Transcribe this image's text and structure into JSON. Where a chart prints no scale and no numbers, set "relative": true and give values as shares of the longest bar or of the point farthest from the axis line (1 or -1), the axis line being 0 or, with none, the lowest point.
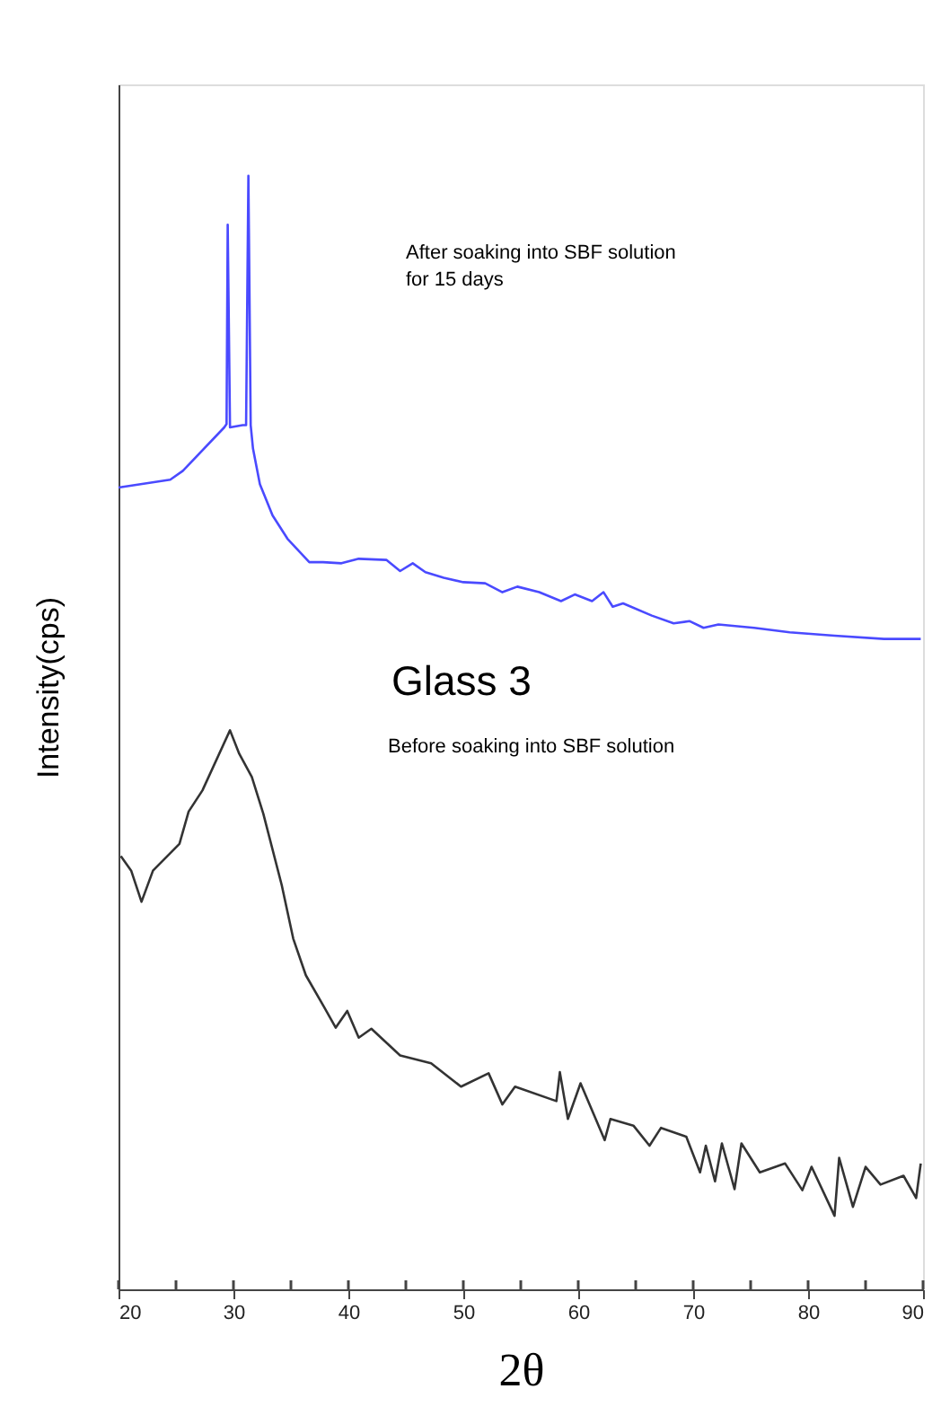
{
  "chart_data": {
    "type": "line",
    "relative": true,
    "xlabel": "2θ",
    "ylabel": "Intensity(cps)",
    "annotations": [
      "After soaking into SBF solution\nfor 15 days",
      "Glass 3",
      "Before soaking into SBF solution"
    ],
    "xlim": [
      20,
      90
    ],
    "xticks": [
      20,
      {
        "value": 25,
        "label": null
      },
      30,
      {
        "value": 35,
        "label": null
      },
      40,
      {
        "value": 45,
        "label": null
      },
      50,
      {
        "value": 55,
        "label": null
      },
      60,
      {
        "value": 65,
        "label": null
      },
      70,
      {
        "value": 75,
        "label": null
      },
      80,
      {
        "value": 85,
        "label": null
      },
      90
    ],
    "grid": false,
    "marker": "none",
    "line_style": "solid",
    "series": [
      {
        "color": "#4a4aff",
        "x": [
          20,
          24.5,
          25.6,
          29.2,
          29.4,
          29.5,
          29.7,
          30.8,
          31.1,
          31.3,
          31.5,
          31.7,
          32.3,
          33.4,
          34.7,
          36.6,
          37.8,
          39.4,
          40.9,
          43.3,
          44.5,
          45.6,
          46.7,
          48.3,
          50,
          51.9,
          53.4,
          54.7,
          56.6,
          58.5,
          59.7,
          61.2,
          62.2,
          63,
          63.9,
          66.4,
          68.3,
          69.7,
          70.9,
          72.2,
          75.3,
          78.4,
          82.3,
          86.6,
          89.8
        ],
        "values": [
          0.72,
          0.727,
          0.735,
          0.774,
          0.777,
          0.956,
          0.774,
          0.776,
          0.776,
          1.0,
          0.776,
          0.755,
          0.723,
          0.695,
          0.674,
          0.653,
          0.653,
          0.652,
          0.656,
          0.655,
          0.645,
          0.652,
          0.644,
          0.639,
          0.635,
          0.634,
          0.626,
          0.631,
          0.626,
          0.618,
          0.624,
          0.618,
          0.626,
          0.613,
          0.616,
          0.605,
          0.598,
          0.6,
          0.594,
          0.597,
          0.594,
          0.59,
          0.587,
          0.584,
          0.584
        ]
      },
      {
        "color": "#333333",
        "x": [
          20.2,
          21.1,
          22,
          23,
          25.3,
          26.1,
          27.3,
          29.7,
          30.5,
          31.6,
          32.6,
          34.2,
          35.2,
          36.3,
          37.8,
          38.9,
          39.9,
          40.9,
          42,
          44.5,
          47.2,
          49.8,
          52.2,
          53.4,
          54.5,
          58.1,
          58.4,
          59.1,
          60.2,
          62.3,
          62.8,
          64.8,
          66.2,
          67.2,
          69.4,
          70.6,
          71.1,
          71.9,
          72.5,
          73.6,
          74.2,
          75.8,
          78,
          79.5,
          80.3,
          82.3,
          82.7,
          83.9,
          85,
          86.3,
          88.3,
          89.4,
          89.8
        ],
        "values": [
          0.389,
          0.376,
          0.348,
          0.376,
          0.4,
          0.429,
          0.448,
          0.502,
          0.481,
          0.46,
          0.427,
          0.363,
          0.315,
          0.282,
          0.255,
          0.235,
          0.25,
          0.226,
          0.234,
          0.21,
          0.203,
          0.182,
          0.194,
          0.166,
          0.182,
          0.169,
          0.195,
          0.153,
          0.185,
          0.134,
          0.153,
          0.147,
          0.129,
          0.145,
          0.137,
          0.105,
          0.129,
          0.097,
          0.131,
          0.09,
          0.131,
          0.105,
          0.113,
          0.089,
          0.11,
          0.066,
          0.118,
          0.074,
          0.11,
          0.094,
          0.102,
          0.082,
          0.113
        ]
      }
    ]
  }
}
